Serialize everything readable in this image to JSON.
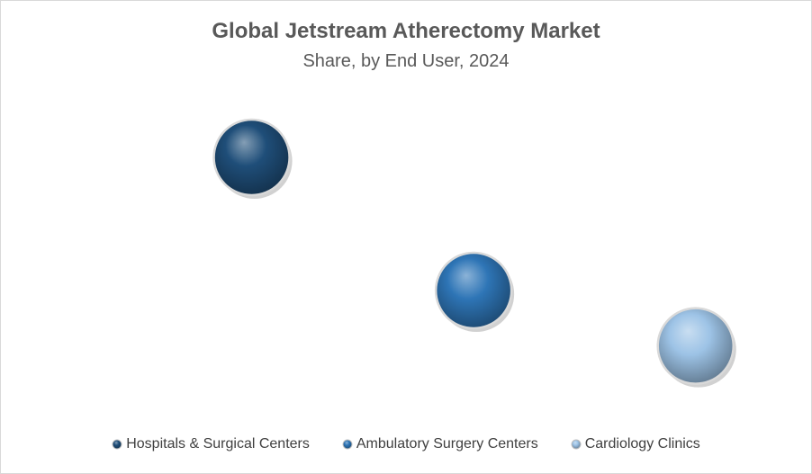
{
  "chart_data": {
    "type": "scatter",
    "title": "Global Jetstream Atherectomy Market",
    "subtitle": "Share, by End User, 2024",
    "xlabel": "",
    "ylabel": "",
    "x_range": [
      0,
      3.5
    ],
    "y_range": [
      0,
      60
    ],
    "grid": false,
    "legend_position": "bottom",
    "series": [
      {
        "name": "Hospitals & Surgical Centers",
        "x": 1,
        "y": 48,
        "color": "#1f4e79"
      },
      {
        "name": "Ambulatory Surgery Centers",
        "x": 2,
        "y": 24,
        "color": "#2e75b6"
      },
      {
        "name": "Cardiology Clinics",
        "x": 3,
        "y": 14,
        "color": "#9dc3e6"
      }
    ]
  }
}
